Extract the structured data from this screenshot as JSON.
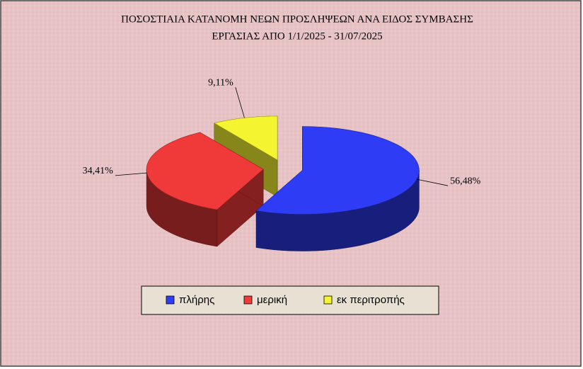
{
  "chart_data": {
    "type": "pie",
    "title": "ΠΟΣΟΣΤΙΑΙΑ ΚΑΤΑΝΟΜΗ ΝΕΩΝ ΠΡΟΣΛΗΨΕΩΝ ΑΝΑ ΕΙΔΟΣ ΣΥΜΒΑΣΗΣ",
    "subtitle": "ΕΡΓΑΣΙΑΣ ΑΠΟ 1/1/2025 - 31/07/2025",
    "categories": [
      "πλήρης",
      "μερική",
      "εκ περιτροπής"
    ],
    "values": [
      56.48,
      34.41,
      9.11
    ],
    "value_labels": [
      "56,48%",
      "34,41%",
      "9,11%"
    ],
    "colors": [
      "#2f3cf5",
      "#f03a3a",
      "#f4f430"
    ],
    "legend": "bottom"
  }
}
